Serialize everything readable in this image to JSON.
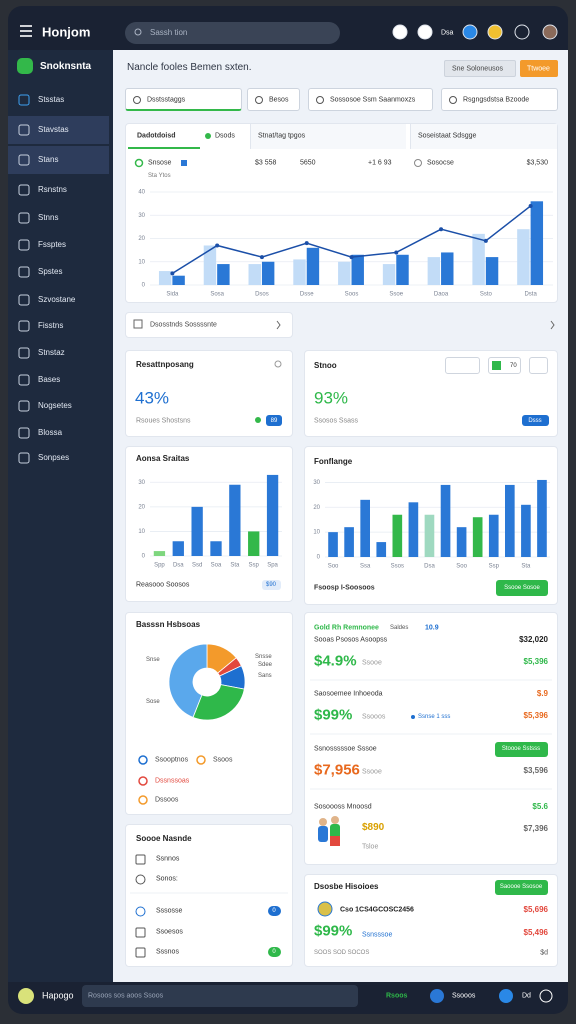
{
  "topbar": {
    "title": "Honjom",
    "search": "Sassh tion",
    "badge": "Dsa"
  },
  "sidebar": {
    "brand": "Snoknsnta",
    "items": [
      "Stsstas",
      "Stavstas",
      "Stans",
      "Rsnstns",
      "Stnns",
      "Fssptes",
      "Spstes",
      "Szvostane",
      "Fisstns",
      "Stnstaz",
      "Bases",
      "Nogsetes",
      "Blossa",
      "Sonpses"
    ]
  },
  "header": {
    "title": "Nancle fooles Bemen sxten.",
    "button_secondary": "Sne   Soloneusos",
    "button_primary": "Ttwoee"
  },
  "filters": [
    "Dsstsstaggs",
    "Besos",
    "Sossosoe Ssm Saanmoxzs",
    "Rsgngsdstsa Bzoode"
  ],
  "charts": {
    "main": {
      "type": "bar",
      "tabs": [
        "Dadotdoisd",
        "Dsods",
        "Stnat/tag tpgos",
        "Soseistaat Sdsgge"
      ],
      "stats": [
        "$3 558",
        "5650",
        "+1 6 93",
        "$3,530"
      ],
      "categories": [
        "Sida",
        "Sosa",
        "Dsos",
        "Dsse",
        "Soos",
        "Ssoe",
        "Daoa",
        "Ssto",
        "Dsta"
      ],
      "ylim": [
        0,
        40
      ],
      "yticks": [
        0,
        10,
        20,
        30,
        40
      ],
      "grid": true,
      "series": [
        {
          "name": "Snsose",
          "color": "#c2dcf7",
          "values": [
            6,
            17,
            9,
            11,
            10,
            9,
            12,
            22,
            24
          ]
        },
        {
          "name": "Sta Ytos",
          "color": "#2a78d6",
          "values": [
            4,
            9,
            10,
            16,
            13,
            13,
            14,
            12,
            36
          ]
        },
        {
          "name": "Sosocse",
          "type": "line",
          "color": "#1b4fa8",
          "values": [
            5,
            17,
            12,
            18,
            12,
            14,
            24,
            19,
            34
          ]
        }
      ]
    },
    "stage": {
      "type": "bar",
      "title": "Aonsa Sraitas",
      "categories": [
        "Spp",
        "Dsa",
        "Ssd",
        "Soa",
        "Sta",
        "Ssp",
        "Spa"
      ],
      "ylim": [
        0,
        35
      ],
      "yticks": [
        0,
        10,
        20,
        30
      ],
      "grid": true,
      "values": [
        2,
        6,
        20,
        6,
        29,
        10,
        33
      ],
      "colors": [
        "#7ed67e",
        "#2a78d6",
        "#2a78d6",
        "#2a78d6",
        "#2a78d6",
        "#33b84a",
        "#2a78d6"
      ],
      "footer": "Reasooo Soosos",
      "badge": "$90"
    },
    "flow": {
      "type": "bar",
      "title": "Fonflange",
      "categories": [
        "Soo",
        null,
        "Ssa",
        null,
        "Ssos",
        null,
        "Dsa",
        null,
        "Soo",
        null,
        "Ssp",
        null,
        "Sta",
        null
      ],
      "ylim": [
        0,
        35
      ],
      "yticks": [
        0,
        10,
        20,
        30
      ],
      "grid": true,
      "values": [
        10,
        12,
        23,
        6,
        17,
        22,
        17,
        29,
        12,
        16,
        17,
        29,
        21,
        31
      ],
      "colors": [
        "#2a78d6",
        "#2a78d6",
        "#2a78d6",
        "#2a78d6",
        "#33b84a",
        "#2a78d6",
        "#9fd9c0",
        "#2a78d6",
        "#2a78d6",
        "#33b84a",
        "#2a78d6",
        "#2a78d6",
        "#2a78d6",
        "#2a78d6"
      ],
      "footer": "Fsoosp I-Soosoos",
      "button": "Ssooe Sosoe"
    },
    "pie": {
      "type": "pie",
      "title": "Basssn Hsbsoas",
      "labels": [
        "Snsse",
        "Sdee",
        "Sans",
        "Sose",
        "Snse"
      ],
      "values": [
        14,
        4,
        10,
        28,
        44
      ],
      "colors": [
        "#f39a2b",
        "#e2483d",
        "#1e6fd0",
        "#2fb84a",
        "#5aa8ec"
      ],
      "legend": [
        "Ssooptnos",
        "Ssoos",
        "Dssnssoas",
        "Dssoos"
      ]
    }
  },
  "link_card": "Dsosstnds Sossssnte",
  "kpis": [
    {
      "title": "Resattnposang",
      "value": "43%",
      "note": "Rsoues Shostsns",
      "badge": "89"
    },
    {
      "title": "Stnoo",
      "value": "93%",
      "note": "Ssosos Ssass",
      "badge": "Dsss",
      "chip": "70"
    }
  ],
  "finance": {
    "title": "Gold Rh Remnonee",
    "subtitle": "Saldes",
    "tag": "10.9",
    "rows": [
      {
        "label": "Sooas Psosos Asoopss",
        "top": "$32,020",
        "value": "$4.9%",
        "note": "Ssooe",
        "amount": "$5,396"
      },
      {
        "label": "Saosoemee Inhoeoda",
        "top": "$.9",
        "value": "$99%",
        "note": "Ssooos",
        "chip": "Ssnse 1 sss",
        "amount": "$5,396"
      },
      {
        "label": "Ssnosssssoe Sssoe",
        "button": "Stoooe Sstsss",
        "value": "$7,956",
        "note": "Ssooe",
        "amount": "$3,596"
      },
      {
        "label": "Sosoooss Mnoosd",
        "top": "$5.6",
        "value": "$890",
        "note": "Tsloe",
        "amount": "$7,396"
      }
    ]
  },
  "tasks": {
    "title": "Soooe Nasnde",
    "items": [
      "Ssnnos",
      "Sonos:",
      "Sssosse",
      "Ssoesos",
      "Sssnos"
    ],
    "badges": [
      "0",
      "0"
    ]
  },
  "invoices": {
    "title": "Dsosbe Hisoioes",
    "button": "Saoooe Ssosoe",
    "ref": "Cso 1CS4GCOSC2456",
    "ref_amount": "$5,696",
    "value": "$99%",
    "note": "Ssnsssoe",
    "amount": "$5,496",
    "footer": "SOOS SOD SOCOS",
    "footer_amount": "$d"
  },
  "statusbar": {
    "title": "Hapogo",
    "text": "Rosoos sos aoos Ssoos",
    "status": "Rsoos",
    "user": "Ssooos",
    "action": "Dd"
  }
}
